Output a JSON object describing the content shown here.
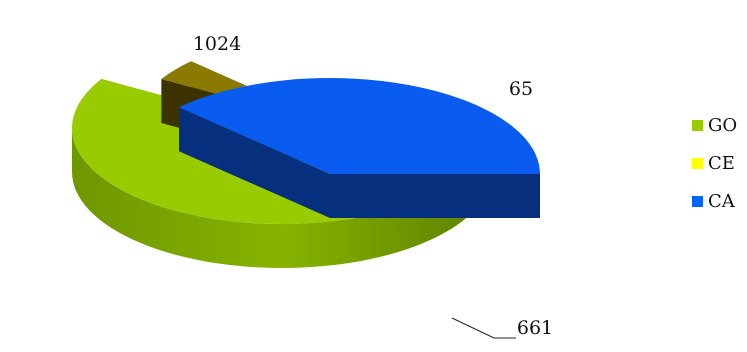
{
  "chart_data": {
    "type": "pie",
    "categories": [
      "GO",
      "CE",
      "CA"
    ],
    "values": [
      1024,
      65,
      661
    ],
    "colors": [
      "#99cc00",
      "#ffff00",
      "#0066ff"
    ],
    "legend_position": "right",
    "exploded": true,
    "style": "3d"
  }
}
